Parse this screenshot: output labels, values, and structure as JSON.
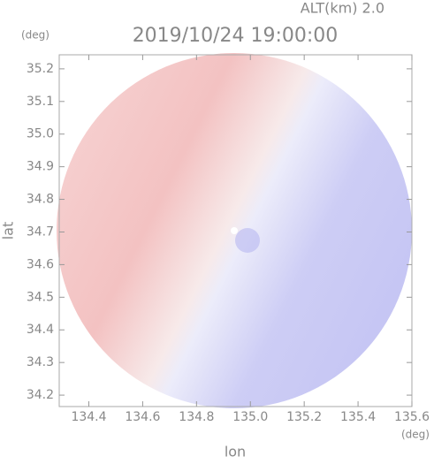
{
  "chart_data": {
    "type": "radar-image",
    "title": "2019/10/24 19:00:00",
    "altitude_label": "ALT(km) 2.0",
    "y_unit": "(deg)",
    "x_unit": "(deg)",
    "xlabel": "lon",
    "ylabel": "lat",
    "xlim": [
      134.29,
      135.6
    ],
    "ylim": [
      34.165,
      35.243
    ],
    "xticks": [
      134.4,
      134.6,
      134.8,
      {
        "value": 135,
        "label": "135.0"
      },
      135.2,
      135.4,
      135.6
    ],
    "yticks": [
      34.2,
      34.3,
      34.4,
      34.5,
      34.6,
      34.7,
      34.8,
      34.9,
      {
        "value": 35,
        "label": "35.0"
      },
      35.1,
      35.2
    ]
  }
}
